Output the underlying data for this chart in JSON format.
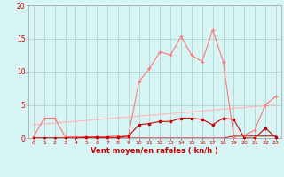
{
  "x": [
    0,
    1,
    2,
    3,
    4,
    5,
    6,
    7,
    8,
    9,
    10,
    11,
    12,
    13,
    14,
    15,
    16,
    17,
    18,
    19,
    20,
    21,
    22,
    23
  ],
  "rafales": [
    0.2,
    3.0,
    3.0,
    0.2,
    0.2,
    0.2,
    0.2,
    0.2,
    0.4,
    0.4,
    8.5,
    10.5,
    13.0,
    12.5,
    15.3,
    12.5,
    11.5,
    16.3,
    11.5,
    0.2,
    0.4,
    1.2,
    5.0,
    6.3
  ],
  "vent_moyen": [
    0.0,
    0.0,
    0.0,
    0.0,
    0.0,
    0.1,
    0.1,
    0.1,
    0.1,
    0.3,
    2.0,
    2.2,
    2.5,
    2.5,
    3.0,
    3.0,
    2.8,
    2.0,
    3.0,
    2.8,
    0.0,
    0.0,
    1.5,
    0.1
  ],
  "trend_line_x": [
    0,
    23
  ],
  "trend_line_y": [
    2.0,
    5.0
  ],
  "freq_line": [
    0.0,
    0.0,
    0.0,
    0.0,
    0.0,
    0.0,
    0.0,
    0.0,
    0.0,
    0.0,
    0.0,
    0.0,
    0.0,
    0.0,
    0.0,
    0.0,
    0.0,
    0.0,
    0.0,
    0.3,
    0.3,
    0.3,
    0.3,
    0.3
  ],
  "color_rafales": "#ff7777",
  "color_vent": "#cc0000",
  "color_trend": "#ffbbbb",
  "bg_color": "#d8f5f5",
  "grid_color": "#aacccc",
  "xlabel": "Vent moyen/en rafales ( kn/h )",
  "ylim": [
    0,
    20
  ],
  "xlim": [
    -0.5,
    23.5
  ],
  "yticks": [
    0,
    5,
    10,
    15,
    20
  ],
  "xtick_fontsize": 4.5,
  "ytick_fontsize": 5.5,
  "xlabel_fontsize": 6.0
}
